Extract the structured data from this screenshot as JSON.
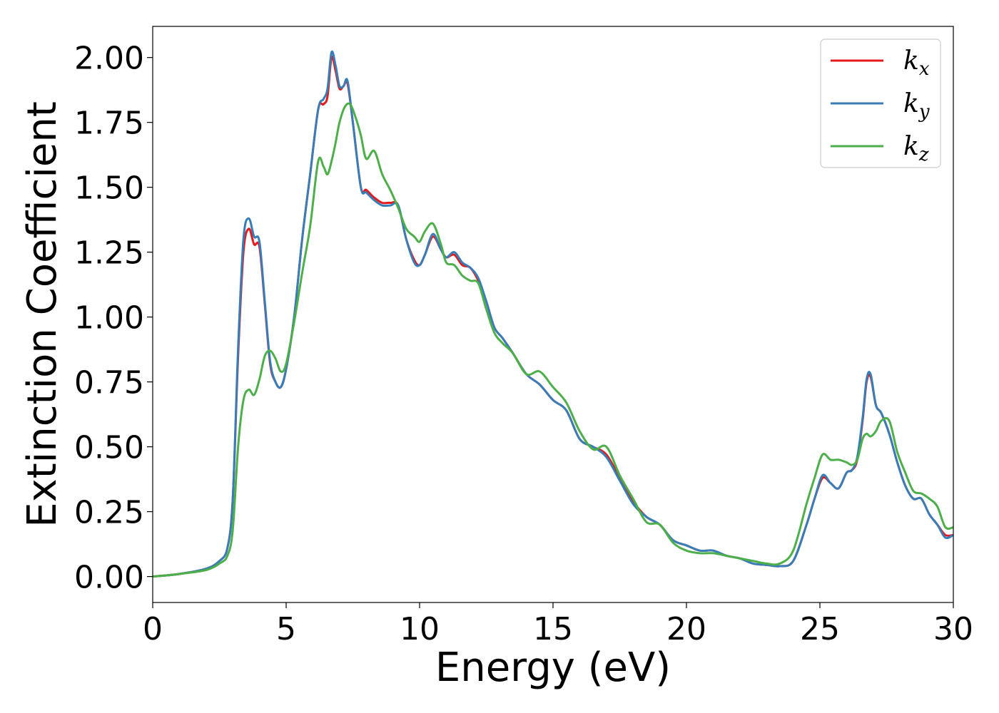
{
  "chart_data": {
    "type": "line",
    "xlabel": "Energy (eV)",
    "ylabel": "Extinction Coefficient",
    "xlim": [
      0,
      30
    ],
    "ylim": [
      -0.1,
      2.12
    ],
    "xticks": [
      0,
      5,
      10,
      15,
      20,
      25,
      30
    ],
    "xtick_labels": [
      "0",
      "5",
      "10",
      "15",
      "20",
      "25",
      "30"
    ],
    "yticks": [
      0.0,
      0.25,
      0.5,
      0.75,
      1.0,
      1.25,
      1.5,
      1.75,
      2.0
    ],
    "ytick_labels": [
      "0.00",
      "0.25",
      "0.50",
      "0.75",
      "1.00",
      "1.25",
      "1.50",
      "1.75",
      "2.00"
    ],
    "grid": false,
    "legend_position": "top-right",
    "series": [
      {
        "name": "k_x",
        "label_base": "k",
        "label_sub": "x",
        "color": "#e41a1c",
        "x": [
          0,
          1,
          2,
          2.5,
          2.8,
          3.0,
          3.2,
          3.4,
          3.6,
          3.8,
          4.0,
          4.2,
          4.4,
          4.6,
          4.8,
          5.0,
          5.3,
          5.6,
          5.9,
          6.2,
          6.4,
          6.55,
          6.7,
          6.85,
          7.0,
          7.15,
          7.3,
          7.5,
          7.8,
          8.0,
          8.3,
          8.6,
          8.9,
          9.2,
          9.5,
          9.8,
          10.0,
          10.2,
          10.5,
          10.8,
          11.0,
          11.3,
          11.6,
          11.9,
          12.2,
          12.5,
          12.8,
          13.1,
          13.5,
          14.0,
          14.5,
          15.0,
          15.5,
          16.0,
          16.5,
          17.0,
          17.5,
          18.0,
          18.5,
          19.0,
          19.5,
          20.0,
          20.5,
          21.0,
          21.5,
          22.0,
          22.5,
          23.0,
          23.5,
          24.0,
          24.5,
          24.8,
          25.1,
          25.4,
          25.7,
          26.0,
          26.2,
          26.4,
          26.6,
          26.75,
          26.9,
          27.1,
          27.3,
          27.6,
          27.9,
          28.2,
          28.5,
          28.8,
          29.1,
          29.4,
          29.7,
          30.0
        ],
        "y": [
          0.0,
          0.01,
          0.03,
          0.06,
          0.11,
          0.3,
          0.85,
          1.25,
          1.34,
          1.28,
          1.27,
          1.05,
          0.82,
          0.75,
          0.73,
          0.8,
          1.0,
          1.3,
          1.55,
          1.8,
          1.82,
          1.85,
          2.0,
          1.95,
          1.88,
          1.89,
          1.9,
          1.75,
          1.5,
          1.49,
          1.46,
          1.44,
          1.44,
          1.43,
          1.3,
          1.22,
          1.2,
          1.24,
          1.31,
          1.26,
          1.23,
          1.24,
          1.2,
          1.19,
          1.14,
          1.06,
          0.96,
          0.92,
          0.86,
          0.78,
          0.74,
          0.68,
          0.64,
          0.53,
          0.5,
          0.47,
          0.38,
          0.29,
          0.23,
          0.2,
          0.14,
          0.12,
          0.1,
          0.1,
          0.08,
          0.07,
          0.05,
          0.045,
          0.04,
          0.06,
          0.2,
          0.3,
          0.38,
          0.36,
          0.34,
          0.4,
          0.41,
          0.45,
          0.6,
          0.75,
          0.77,
          0.66,
          0.63,
          0.55,
          0.44,
          0.35,
          0.3,
          0.3,
          0.24,
          0.2,
          0.16,
          0.16
        ]
      },
      {
        "name": "k_y",
        "label_base": "k",
        "label_sub": "y",
        "color": "#377eb8",
        "x": [
          0,
          1,
          2,
          2.5,
          2.8,
          3.0,
          3.2,
          3.4,
          3.6,
          3.8,
          4.0,
          4.2,
          4.4,
          4.6,
          4.8,
          5.0,
          5.3,
          5.6,
          5.9,
          6.2,
          6.4,
          6.55,
          6.7,
          6.85,
          7.0,
          7.15,
          7.3,
          7.5,
          7.8,
          8.0,
          8.3,
          8.6,
          8.9,
          9.2,
          9.5,
          9.8,
          10.0,
          10.2,
          10.5,
          10.8,
          11.0,
          11.3,
          11.6,
          11.9,
          12.2,
          12.5,
          12.8,
          13.1,
          13.5,
          14.0,
          14.5,
          15.0,
          15.5,
          16.0,
          16.5,
          17.0,
          17.5,
          18.0,
          18.5,
          19.0,
          19.5,
          20.0,
          20.5,
          21.0,
          21.5,
          22.0,
          22.5,
          23.0,
          23.5,
          24.0,
          24.5,
          24.8,
          25.1,
          25.4,
          25.7,
          26.0,
          26.2,
          26.4,
          26.6,
          26.75,
          26.9,
          27.1,
          27.3,
          27.6,
          27.9,
          28.2,
          28.5,
          28.8,
          29.1,
          29.4,
          29.7,
          30.0
        ],
        "y": [
          0.0,
          0.01,
          0.03,
          0.06,
          0.11,
          0.3,
          0.88,
          1.3,
          1.38,
          1.31,
          1.29,
          1.06,
          0.83,
          0.75,
          0.73,
          0.8,
          1.0,
          1.3,
          1.55,
          1.8,
          1.84,
          1.88,
          2.02,
          1.97,
          1.89,
          1.89,
          1.91,
          1.75,
          1.5,
          1.48,
          1.45,
          1.43,
          1.43,
          1.43,
          1.3,
          1.21,
          1.2,
          1.24,
          1.32,
          1.26,
          1.23,
          1.25,
          1.21,
          1.19,
          1.15,
          1.06,
          0.96,
          0.92,
          0.86,
          0.78,
          0.74,
          0.68,
          0.64,
          0.53,
          0.5,
          0.46,
          0.37,
          0.28,
          0.23,
          0.2,
          0.14,
          0.12,
          0.1,
          0.1,
          0.08,
          0.07,
          0.05,
          0.045,
          0.04,
          0.06,
          0.2,
          0.3,
          0.39,
          0.36,
          0.34,
          0.4,
          0.41,
          0.46,
          0.61,
          0.76,
          0.78,
          0.66,
          0.63,
          0.55,
          0.44,
          0.35,
          0.3,
          0.3,
          0.24,
          0.2,
          0.15,
          0.16
        ]
      },
      {
        "name": "k_z",
        "label_base": "k",
        "label_sub": "z",
        "color": "#4daf4a",
        "x": [
          0,
          1,
          2,
          2.5,
          2.8,
          3.0,
          3.2,
          3.4,
          3.6,
          3.8,
          4.0,
          4.2,
          4.4,
          4.6,
          4.8,
          5.0,
          5.3,
          5.6,
          5.9,
          6.2,
          6.4,
          6.55,
          6.7,
          6.85,
          7.0,
          7.2,
          7.4,
          7.6,
          7.8,
          8.0,
          8.3,
          8.6,
          8.9,
          9.2,
          9.5,
          9.8,
          10.0,
          10.2,
          10.5,
          10.8,
          11.0,
          11.3,
          11.6,
          11.9,
          12.2,
          12.5,
          12.8,
          13.1,
          13.5,
          14.0,
          14.5,
          15.0,
          15.5,
          16.0,
          16.5,
          17.0,
          17.5,
          18.0,
          18.5,
          19.0,
          19.5,
          20.0,
          20.5,
          21.0,
          21.5,
          22.0,
          22.5,
          23.0,
          23.5,
          24.0,
          24.5,
          24.8,
          25.1,
          25.4,
          25.7,
          26.0,
          26.2,
          26.4,
          26.6,
          26.75,
          26.9,
          27.1,
          27.3,
          27.6,
          27.9,
          28.2,
          28.5,
          28.8,
          29.1,
          29.4,
          29.7,
          30.0
        ],
        "y": [
          0.0,
          0.01,
          0.025,
          0.05,
          0.08,
          0.18,
          0.5,
          0.68,
          0.72,
          0.7,
          0.76,
          0.85,
          0.87,
          0.84,
          0.79,
          0.82,
          0.98,
          1.17,
          1.35,
          1.6,
          1.58,
          1.55,
          1.6,
          1.67,
          1.75,
          1.81,
          1.82,
          1.77,
          1.7,
          1.61,
          1.64,
          1.55,
          1.49,
          1.42,
          1.34,
          1.31,
          1.29,
          1.33,
          1.36,
          1.28,
          1.21,
          1.2,
          1.16,
          1.14,
          1.13,
          1.03,
          0.94,
          0.9,
          0.86,
          0.78,
          0.79,
          0.73,
          0.67,
          0.56,
          0.49,
          0.5,
          0.39,
          0.3,
          0.21,
          0.2,
          0.13,
          0.1,
          0.09,
          0.09,
          0.08,
          0.07,
          0.06,
          0.05,
          0.05,
          0.1,
          0.28,
          0.38,
          0.47,
          0.45,
          0.45,
          0.44,
          0.43,
          0.45,
          0.53,
          0.55,
          0.54,
          0.56,
          0.6,
          0.6,
          0.48,
          0.4,
          0.33,
          0.32,
          0.3,
          0.27,
          0.19,
          0.19
        ]
      }
    ]
  }
}
